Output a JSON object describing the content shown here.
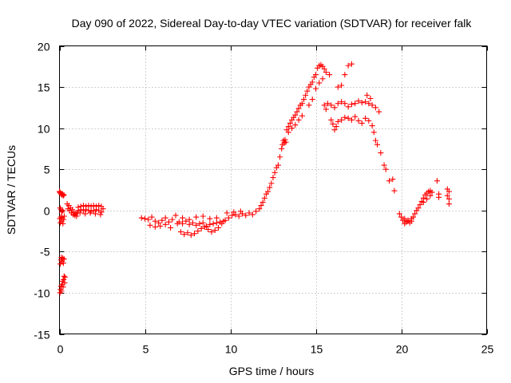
{
  "chart_data": {
    "type": "scatter",
    "title": "Day 090 of 2022, Sidereal Day-to-day VTEC variation (SDTVAR) for receiver falk",
    "xlabel": "GPS time / hours",
    "ylabel": "SDTVAR / TECUs",
    "xlim": [
      0,
      25
    ],
    "ylim": [
      -15,
      20
    ],
    "xticks": [
      0,
      5,
      10,
      15,
      20,
      25
    ],
    "yticks": [
      -15,
      -10,
      -5,
      0,
      5,
      10,
      15,
      20
    ],
    "grid": true,
    "marker": "+",
    "color": "#ff0000",
    "series": [
      {
        "name": "SDTVAR",
        "points": [
          [
            0.0,
            2.3
          ],
          [
            0.03,
            2.2
          ],
          [
            0.06,
            2.1
          ],
          [
            0.1,
            2.0
          ],
          [
            0.14,
            1.9
          ],
          [
            0.18,
            2.0
          ],
          [
            0.22,
            1.8
          ],
          [
            0.26,
            1.9
          ],
          [
            0.02,
            -1.0
          ],
          [
            0.05,
            -1.5
          ],
          [
            0.08,
            -0.8
          ],
          [
            0.12,
            -1.3
          ],
          [
            0.16,
            -0.9
          ],
          [
            0.2,
            -1.6
          ],
          [
            0.24,
            -1.1
          ],
          [
            0.28,
            -0.7
          ],
          [
            0.04,
            0.3
          ],
          [
            0.09,
            0.1
          ],
          [
            0.14,
            -0.2
          ],
          [
            0.19,
            0.0
          ],
          [
            0.05,
            -6.5
          ],
          [
            0.08,
            -6.0
          ],
          [
            0.11,
            -5.7
          ],
          [
            0.15,
            -6.2
          ],
          [
            0.19,
            -5.8
          ],
          [
            0.23,
            -6.4
          ],
          [
            0.27,
            -5.9
          ],
          [
            0.03,
            -10.0
          ],
          [
            0.06,
            -9.6
          ],
          [
            0.09,
            -9.2
          ],
          [
            0.12,
            -9.8
          ],
          [
            0.15,
            -9.0
          ],
          [
            0.18,
            -8.6
          ],
          [
            0.21,
            -9.3
          ],
          [
            0.24,
            -8.4
          ],
          [
            0.27,
            -8.0
          ],
          [
            0.3,
            -8.8
          ],
          [
            0.32,
            -8.1
          ],
          [
            0.45,
            0.8
          ],
          [
            0.55,
            0.6
          ],
          [
            0.65,
            0.3
          ],
          [
            0.75,
            0.1
          ],
          [
            0.85,
            -0.2
          ],
          [
            0.95,
            -0.4
          ],
          [
            1.05,
            -0.3
          ],
          [
            0.5,
            0.2
          ],
          [
            0.6,
            0.0
          ],
          [
            0.7,
            -0.3
          ],
          [
            0.8,
            -0.5
          ],
          [
            0.9,
            -0.6
          ],
          [
            1.0,
            -0.7
          ],
          [
            1.1,
            0.4
          ],
          [
            1.25,
            0.5
          ],
          [
            1.4,
            0.6
          ],
          [
            1.55,
            0.5
          ],
          [
            1.7,
            0.6
          ],
          [
            1.85,
            0.5
          ],
          [
            2.0,
            0.6
          ],
          [
            2.15,
            0.5
          ],
          [
            2.3,
            0.6
          ],
          [
            2.45,
            0.5
          ],
          [
            1.1,
            0.0
          ],
          [
            1.25,
            0.1
          ],
          [
            1.4,
            0.0
          ],
          [
            1.55,
            0.1
          ],
          [
            1.7,
            0.0
          ],
          [
            1.85,
            -0.1
          ],
          [
            2.0,
            0.0
          ],
          [
            2.15,
            0.1
          ],
          [
            2.3,
            0.0
          ],
          [
            2.45,
            -0.2
          ],
          [
            1.2,
            -0.3
          ],
          [
            1.5,
            -0.4
          ],
          [
            1.8,
            -0.3
          ],
          [
            2.1,
            -0.4
          ],
          [
            2.4,
            -0.5
          ],
          [
            2.55,
            0.2
          ],
          [
            4.8,
            -0.9
          ],
          [
            5.0,
            -1.0
          ],
          [
            5.2,
            -1.1
          ],
          [
            5.4,
            -0.8
          ],
          [
            5.6,
            -1.3
          ],
          [
            5.8,
            -1.5
          ],
          [
            6.0,
            -1.2
          ],
          [
            6.2,
            -0.9
          ],
          [
            6.4,
            -1.4
          ],
          [
            6.6,
            -1.1
          ],
          [
            5.3,
            -1.8
          ],
          [
            5.6,
            -2.0
          ],
          [
            5.9,
            -1.9
          ],
          [
            6.2,
            -1.7
          ],
          [
            6.5,
            -2.1
          ],
          [
            6.8,
            -0.6
          ],
          [
            6.9,
            -1.6
          ],
          [
            7.0,
            -1.4
          ],
          [
            7.2,
            -1.6
          ],
          [
            7.4,
            -1.3
          ],
          [
            7.6,
            -1.7
          ],
          [
            7.8,
            -1.5
          ],
          [
            8.0,
            -1.8
          ],
          [
            8.2,
            -1.6
          ],
          [
            8.4,
            -1.5
          ],
          [
            8.6,
            -1.9
          ],
          [
            8.8,
            -1.7
          ],
          [
            9.0,
            -1.6
          ],
          [
            9.2,
            -1.5
          ],
          [
            9.4,
            -1.4
          ],
          [
            7.1,
            -2.6
          ],
          [
            7.3,
            -2.9
          ],
          [
            7.5,
            -2.7
          ],
          [
            7.7,
            -3.0
          ],
          [
            7.9,
            -2.8
          ],
          [
            8.1,
            -2.5
          ],
          [
            8.3,
            -2.2
          ],
          [
            8.5,
            -2.0
          ],
          [
            8.7,
            -2.3
          ],
          [
            8.9,
            -2.6
          ],
          [
            9.1,
            -2.4
          ],
          [
            9.3,
            -2.1
          ],
          [
            7.2,
            -0.9
          ],
          [
            7.6,
            -1.1
          ],
          [
            8.0,
            -0.8
          ],
          [
            8.4,
            -0.7
          ],
          [
            8.8,
            -1.0
          ],
          [
            9.2,
            -0.9
          ],
          [
            9.6,
            -1.3
          ],
          [
            9.5,
            -1.6
          ],
          [
            9.7,
            -1.2
          ],
          [
            9.9,
            -0.9
          ],
          [
            10.1,
            -0.6
          ],
          [
            10.3,
            -0.5
          ],
          [
            10.5,
            -0.7
          ],
          [
            10.7,
            -0.4
          ],
          [
            10.9,
            -0.6
          ],
          [
            11.1,
            -0.3
          ],
          [
            11.3,
            -0.5
          ],
          [
            11.5,
            -0.1
          ],
          [
            9.8,
            -0.3
          ],
          [
            10.2,
            -0.2
          ],
          [
            10.6,
            -0.1
          ],
          [
            11.7,
            0.2
          ],
          [
            11.8,
            0.6
          ],
          [
            11.9,
            1.0
          ],
          [
            12.0,
            1.5
          ],
          [
            12.1,
            2.0
          ],
          [
            12.2,
            2.3
          ],
          [
            12.3,
            2.8
          ],
          [
            12.4,
            3.3
          ],
          [
            12.5,
            4.0
          ],
          [
            12.6,
            4.6
          ],
          [
            12.7,
            5.2
          ],
          [
            12.8,
            5.5
          ],
          [
            12.9,
            6.5
          ],
          [
            13.0,
            7.5
          ],
          [
            13.05,
            8.0
          ],
          [
            13.1,
            8.5
          ],
          [
            13.15,
            8.2
          ],
          [
            13.2,
            8.6
          ],
          [
            13.25,
            8.3
          ],
          [
            13.3,
            9.8
          ],
          [
            13.4,
            10.2
          ],
          [
            13.5,
            10.6
          ],
          [
            13.6,
            11.0
          ],
          [
            13.7,
            11.3
          ],
          [
            13.8,
            11.6
          ],
          [
            13.9,
            12.0
          ],
          [
            14.0,
            12.4
          ],
          [
            14.1,
            12.8
          ],
          [
            14.2,
            13.0
          ],
          [
            13.4,
            9.5
          ],
          [
            13.6,
            10.0
          ],
          [
            13.8,
            10.4
          ],
          [
            14.0,
            11.0
          ],
          [
            14.2,
            11.5
          ],
          [
            14.3,
            13.5
          ],
          [
            14.4,
            14.0
          ],
          [
            14.5,
            14.5
          ],
          [
            14.6,
            15.0
          ],
          [
            14.7,
            15.3
          ],
          [
            14.8,
            15.6
          ],
          [
            14.9,
            16.2
          ],
          [
            15.0,
            16.5
          ],
          [
            15.1,
            17.3
          ],
          [
            15.2,
            17.6
          ],
          [
            15.3,
            17.7
          ],
          [
            15.4,
            17.5
          ],
          [
            15.5,
            17.2
          ],
          [
            14.6,
            12.8
          ],
          [
            14.8,
            13.5
          ],
          [
            15.0,
            14.8
          ],
          [
            15.2,
            15.5
          ],
          [
            15.4,
            16.0
          ],
          [
            15.6,
            16.8
          ],
          [
            15.8,
            16.5
          ],
          [
            15.5,
            12.8
          ],
          [
            15.6,
            12.3
          ],
          [
            15.7,
            13.0
          ],
          [
            15.9,
            11.0
          ],
          [
            16.0,
            10.5
          ],
          [
            16.1,
            9.8
          ],
          [
            16.2,
            10.2
          ],
          [
            15.9,
            12.8
          ],
          [
            16.1,
            12.5
          ],
          [
            16.3,
            13.0
          ],
          [
            16.5,
            13.2
          ],
          [
            16.7,
            13.0
          ],
          [
            16.9,
            12.6
          ],
          [
            17.1,
            12.9
          ],
          [
            17.3,
            13.0
          ],
          [
            17.5,
            13.3
          ],
          [
            17.7,
            13.1
          ],
          [
            17.9,
            13.2
          ],
          [
            18.1,
            13.0
          ],
          [
            18.3,
            12.8
          ],
          [
            18.5,
            12.5
          ],
          [
            18.7,
            12.0
          ],
          [
            16.3,
            10.8
          ],
          [
            16.5,
            11.0
          ],
          [
            16.7,
            11.3
          ],
          [
            16.9,
            11.2
          ],
          [
            17.1,
            11.0
          ],
          [
            17.3,
            11.4
          ],
          [
            17.5,
            10.9
          ],
          [
            17.7,
            10.6
          ],
          [
            17.9,
            11.2
          ],
          [
            18.1,
            10.9
          ],
          [
            18.3,
            10.3
          ],
          [
            16.3,
            15.0
          ],
          [
            16.5,
            15.2
          ],
          [
            16.7,
            16.5
          ],
          [
            16.9,
            17.6
          ],
          [
            17.1,
            17.8
          ],
          [
            18.0,
            14.0
          ],
          [
            18.2,
            13.6
          ],
          [
            18.4,
            9.5
          ],
          [
            18.5,
            8.5
          ],
          [
            18.6,
            8.0
          ],
          [
            18.8,
            7.0
          ],
          [
            19.0,
            5.5
          ],
          [
            19.1,
            5.0
          ],
          [
            19.3,
            3.6
          ],
          [
            19.5,
            3.8
          ],
          [
            19.6,
            2.4
          ],
          [
            19.9,
            -0.4
          ],
          [
            20.0,
            -0.8
          ],
          [
            20.1,
            -1.2
          ],
          [
            20.2,
            -1.0
          ],
          [
            20.3,
            -1.4
          ],
          [
            20.4,
            -1.2
          ],
          [
            20.5,
            -1.5
          ],
          [
            20.6,
            -1.3
          ],
          [
            20.7,
            -0.8
          ],
          [
            20.8,
            -0.4
          ],
          [
            20.9,
            0.0
          ],
          [
            20.2,
            -1.6
          ],
          [
            20.4,
            -1.3
          ],
          [
            20.6,
            -1.0
          ],
          [
            21.0,
            0.3
          ],
          [
            21.1,
            0.7
          ],
          [
            21.2,
            1.1
          ],
          [
            21.3,
            1.5
          ],
          [
            21.4,
            1.9
          ],
          [
            21.5,
            2.1
          ],
          [
            21.6,
            2.3
          ],
          [
            21.7,
            2.4
          ],
          [
            21.8,
            2.2
          ],
          [
            21.3,
            1.0
          ],
          [
            21.5,
            1.4
          ],
          [
            21.7,
            1.8
          ],
          [
            22.1,
            3.6
          ],
          [
            22.2,
            2.0
          ],
          [
            22.2,
            1.6
          ],
          [
            22.7,
            2.6
          ],
          [
            22.8,
            2.3
          ],
          [
            22.8,
            1.4
          ],
          [
            22.8,
            0.8
          ],
          [
            22.7,
            1.8
          ]
        ]
      }
    ]
  }
}
